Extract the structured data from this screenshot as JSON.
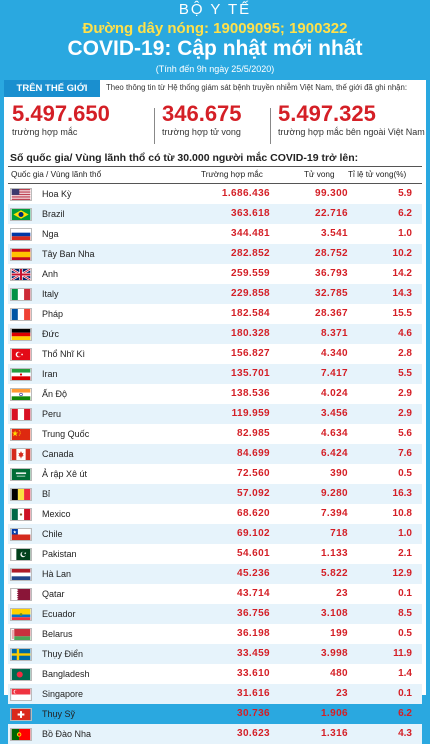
{
  "header": {
    "org": "BỘ Y TẾ",
    "hotline": "Đường dây nóng: 19009095; 1900322",
    "title": "COVID-19: Cập nhật mới nhất",
    "subtitle": "(Tính đến 9h ngày 25/5/2020)"
  },
  "world": {
    "badge": "TRÊN THẾ GIỚI",
    "description": "Theo thông tin từ Hệ thống giám sát bệnh truyền nhiễm Việt Nam, thế giới đã ghi nhận:",
    "stats": [
      {
        "value": "5.497.650",
        "label": "trường hợp mắc"
      },
      {
        "value": "346.675",
        "label": "trường hợp tử vong"
      },
      {
        "value": "5.497.325",
        "label": "trường hợp  mắc bên ngoài Việt Nam"
      }
    ]
  },
  "table": {
    "title": "Số quốc gia/ Vùng lãnh thổ có từ 30.000 người  mắc COVID-19 trở lên:",
    "headers": {
      "country": "Quốc gia / Vùng lãnh thổ",
      "cases": "Trường hợp mắc",
      "deaths": "Tử vong",
      "rate": "Tỉ lệ tử vong(%)"
    },
    "rows": [
      {
        "flag": "us",
        "country": "Hoa Kỳ",
        "cases": "1.686.436",
        "deaths": "99.300",
        "rate": "5.9"
      },
      {
        "flag": "br",
        "country": "Brazil",
        "cases": "363.618",
        "deaths": "22.716",
        "rate": "6.2"
      },
      {
        "flag": "ru",
        "country": "Nga",
        "cases": "344.481",
        "deaths": "3.541",
        "rate": "1.0"
      },
      {
        "flag": "es",
        "country": "Tây Ban Nha",
        "cases": "282.852",
        "deaths": "28.752",
        "rate": "10.2"
      },
      {
        "flag": "gb",
        "country": "Anh",
        "cases": "259.559",
        "deaths": "36.793",
        "rate": "14.2"
      },
      {
        "flag": "it",
        "country": "Italy",
        "cases": "229.858",
        "deaths": "32.785",
        "rate": "14.3"
      },
      {
        "flag": "fr",
        "country": "Pháp",
        "cases": "182.584",
        "deaths": "28.367",
        "rate": "15.5"
      },
      {
        "flag": "de",
        "country": "Đức",
        "cases": "180.328",
        "deaths": "8.371",
        "rate": "4.6"
      },
      {
        "flag": "tr",
        "country": "Thổ Nhĩ Kì",
        "cases": "156.827",
        "deaths": "4.340",
        "rate": "2.8"
      },
      {
        "flag": "ir",
        "country": "Iran",
        "cases": "135.701",
        "deaths": "7.417",
        "rate": "5.5"
      },
      {
        "flag": "in",
        "country": "Ấn Độ",
        "cases": "138.536",
        "deaths": "4.024",
        "rate": "2.9"
      },
      {
        "flag": "pe",
        "country": "Peru",
        "cases": "119.959",
        "deaths": "3.456",
        "rate": "2.9"
      },
      {
        "flag": "cn",
        "country": "Trung Quốc",
        "cases": "82.985",
        "deaths": "4.634",
        "rate": "5.6"
      },
      {
        "flag": "ca",
        "country": "Canada",
        "cases": "84.699",
        "deaths": "6.424",
        "rate": "7.6"
      },
      {
        "flag": "sa",
        "country": "Ả rập Xê út",
        "cases": "72.560",
        "deaths": "390",
        "rate": "0.5"
      },
      {
        "flag": "be",
        "country": "Bỉ",
        "cases": "57.092",
        "deaths": "9.280",
        "rate": "16.3"
      },
      {
        "flag": "mx",
        "country": "Mexico",
        "cases": "68.620",
        "deaths": "7.394",
        "rate": "10.8"
      },
      {
        "flag": "cl",
        "country": "Chile",
        "cases": "69.102",
        "deaths": "718",
        "rate": "1.0"
      },
      {
        "flag": "pk",
        "country": "Pakistan",
        "cases": "54.601",
        "deaths": "1.133",
        "rate": "2.1"
      },
      {
        "flag": "nl",
        "country": "Hà Lan",
        "cases": "45.236",
        "deaths": "5.822",
        "rate": "12.9"
      },
      {
        "flag": "qa",
        "country": "Qatar",
        "cases": "43.714",
        "deaths": "23",
        "rate": "0.1"
      },
      {
        "flag": "ec",
        "country": "Ecuador",
        "cases": "36.756",
        "deaths": "3.108",
        "rate": "8.5"
      },
      {
        "flag": "by",
        "country": "Belarus",
        "cases": "36.198",
        "deaths": "199",
        "rate": "0.5"
      },
      {
        "flag": "se",
        "country": "Thụy Điển",
        "cases": "33.459",
        "deaths": "3.998",
        "rate": "11.9"
      },
      {
        "flag": "bd",
        "country": "Bangladesh",
        "cases": "33.610",
        "deaths": "480",
        "rate": "1.4"
      },
      {
        "flag": "sg",
        "country": "Singapore",
        "cases": "31.616",
        "deaths": "23",
        "rate": "0.1"
      },
      {
        "flag": "ch",
        "country": "Thụy Sỹ",
        "cases": "30.736",
        "deaths": "1.906",
        "rate": "6.2"
      },
      {
        "flag": "pt",
        "country": "Bồ Đào Nha",
        "cases": "30.623",
        "deaths": "1.316",
        "rate": "4.3"
      }
    ]
  },
  "colors": {
    "background": "#2aa8e0",
    "accent_red": "#d41f26",
    "hotline_yellow": "#ffe14a",
    "badge_blue": "#1a8fcf"
  }
}
